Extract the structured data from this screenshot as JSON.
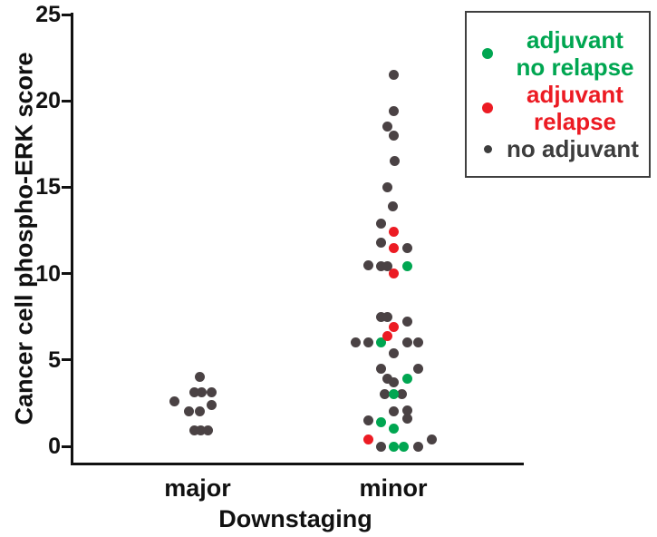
{
  "chart_data": {
    "type": "scatter",
    "subtype": "dot-plot-beeswarm",
    "title": "",
    "xlabel": "Downstaging",
    "ylabel": "Cancer cell phospho-ERK score",
    "ylim": [
      0,
      25
    ],
    "yticks": [
      0,
      5,
      10,
      15,
      20,
      25
    ],
    "categories": [
      "major",
      "minor"
    ],
    "grid": false,
    "legend": {
      "position": "top-right",
      "border_color": "#3f3f3f",
      "items": [
        {
          "name": "adjuvant no relapse",
          "line1": "adjuvant",
          "line2": "no relapse",
          "color": "#00a651",
          "dot_size": "big"
        },
        {
          "name": "adjuvant relapse",
          "line1": "adjuvant",
          "line2": "relapse",
          "color": "#ec1b23",
          "dot_size": "big"
        },
        {
          "name": "no adjuvant",
          "line1": "no adjuvant",
          "line2": "",
          "color": "#3d3d3d",
          "dot_size": "small"
        }
      ]
    },
    "series": [
      {
        "name": "no adjuvant",
        "color": "#4a4244",
        "points": [
          {
            "cat": "major",
            "score": 4.0,
            "jitter": 2.7
          },
          {
            "cat": "major",
            "score": 3.1,
            "jitter": -4
          },
          {
            "cat": "major",
            "score": 3.1,
            "jitter": 4.3
          },
          {
            "cat": "major",
            "score": 3.1,
            "jitter": 15.3
          },
          {
            "cat": "major",
            "score": 2.6,
            "jitter": -25.7
          },
          {
            "cat": "major",
            "score": 2.4,
            "jitter": 15.3
          },
          {
            "cat": "major",
            "score": 2.0,
            "jitter": -10
          },
          {
            "cat": "major",
            "score": 2.0,
            "jitter": 2.7
          },
          {
            "cat": "major",
            "score": 0.9,
            "jitter": -4
          },
          {
            "cat": "major",
            "score": 0.9,
            "jitter": 3.7
          },
          {
            "cat": "major",
            "score": 0.9,
            "jitter": 11
          },
          {
            "cat": "minor",
            "score": 21.5,
            "jitter": 0.3
          },
          {
            "cat": "minor",
            "score": 19.4,
            "jitter": 0.3
          },
          {
            "cat": "minor",
            "score": 18.5,
            "jitter": -6.3
          },
          {
            "cat": "minor",
            "score": 18.0,
            "jitter": 0.3
          },
          {
            "cat": "minor",
            "score": 16.5,
            "jitter": 1
          },
          {
            "cat": "minor",
            "score": 15.0,
            "jitter": -6.3
          },
          {
            "cat": "minor",
            "score": 13.9,
            "jitter": -0.7
          },
          {
            "cat": "minor",
            "score": 12.9,
            "jitter": -13.3
          },
          {
            "cat": "minor",
            "score": 11.8,
            "jitter": -14
          },
          {
            "cat": "minor",
            "score": 11.5,
            "jitter": 15
          },
          {
            "cat": "minor",
            "score": 10.5,
            "jitter": -28
          },
          {
            "cat": "minor",
            "score": 10.4,
            "jitter": -14
          },
          {
            "cat": "minor",
            "score": 10.4,
            "jitter": -6.3
          },
          {
            "cat": "minor",
            "score": 7.5,
            "jitter": -14
          },
          {
            "cat": "minor",
            "score": 7.5,
            "jitter": -6.3
          },
          {
            "cat": "minor",
            "score": 7.2,
            "jitter": 15
          },
          {
            "cat": "minor",
            "score": 6.0,
            "jitter": -41.7
          },
          {
            "cat": "minor",
            "score": 6.0,
            "jitter": -28
          },
          {
            "cat": "minor",
            "score": 6.0,
            "jitter": 15
          },
          {
            "cat": "minor",
            "score": 6.0,
            "jitter": 27.7
          },
          {
            "cat": "minor",
            "score": 5.4,
            "jitter": 0.3
          },
          {
            "cat": "minor",
            "score": 4.5,
            "jitter": -14
          },
          {
            "cat": "minor",
            "score": 4.5,
            "jitter": 27
          },
          {
            "cat": "minor",
            "score": 3.9,
            "jitter": -7
          },
          {
            "cat": "minor",
            "score": 3.7,
            "jitter": 0
          },
          {
            "cat": "minor",
            "score": 3.0,
            "jitter": -9.7
          },
          {
            "cat": "minor",
            "score": 3.0,
            "jitter": 9.3
          },
          {
            "cat": "minor",
            "score": 2.1,
            "jitter": 15
          },
          {
            "cat": "minor",
            "score": 2.0,
            "jitter": 0.3
          },
          {
            "cat": "minor",
            "score": 1.6,
            "jitter": 15
          },
          {
            "cat": "minor",
            "score": 1.5,
            "jitter": -28
          },
          {
            "cat": "minor",
            "score": 0.4,
            "jitter": 42.7
          },
          {
            "cat": "minor",
            "score": 0.0,
            "jitter": -14
          },
          {
            "cat": "minor",
            "score": 0.0,
            "jitter": 27
          }
        ]
      },
      {
        "name": "adjuvant no relapse",
        "color": "#00a651",
        "points": [
          {
            "cat": "minor",
            "score": 10.4,
            "jitter": 15
          },
          {
            "cat": "minor",
            "score": 6.0,
            "jitter": -14
          },
          {
            "cat": "minor",
            "score": 3.9,
            "jitter": 15
          },
          {
            "cat": "minor",
            "score": 3.0,
            "jitter": 0.3
          },
          {
            "cat": "minor",
            "score": 1.4,
            "jitter": -14
          },
          {
            "cat": "minor",
            "score": 1.0,
            "jitter": 0.3
          },
          {
            "cat": "minor",
            "score": 0.0,
            "jitter": 0.3
          },
          {
            "cat": "minor",
            "score": 0.0,
            "jitter": 11.7
          }
        ]
      },
      {
        "name": "adjuvant relapse",
        "color": "#ec1b23",
        "points": [
          {
            "cat": "minor",
            "score": 12.4,
            "jitter": 0.3
          },
          {
            "cat": "minor",
            "score": 11.5,
            "jitter": 0.3
          },
          {
            "cat": "minor",
            "score": 10.0,
            "jitter": 0.3
          },
          {
            "cat": "minor",
            "score": 6.9,
            "jitter": 0.3
          },
          {
            "cat": "minor",
            "score": 6.4,
            "jitter": -6.3
          },
          {
            "cat": "minor",
            "score": 0.4,
            "jitter": -28
          }
        ]
      }
    ]
  }
}
